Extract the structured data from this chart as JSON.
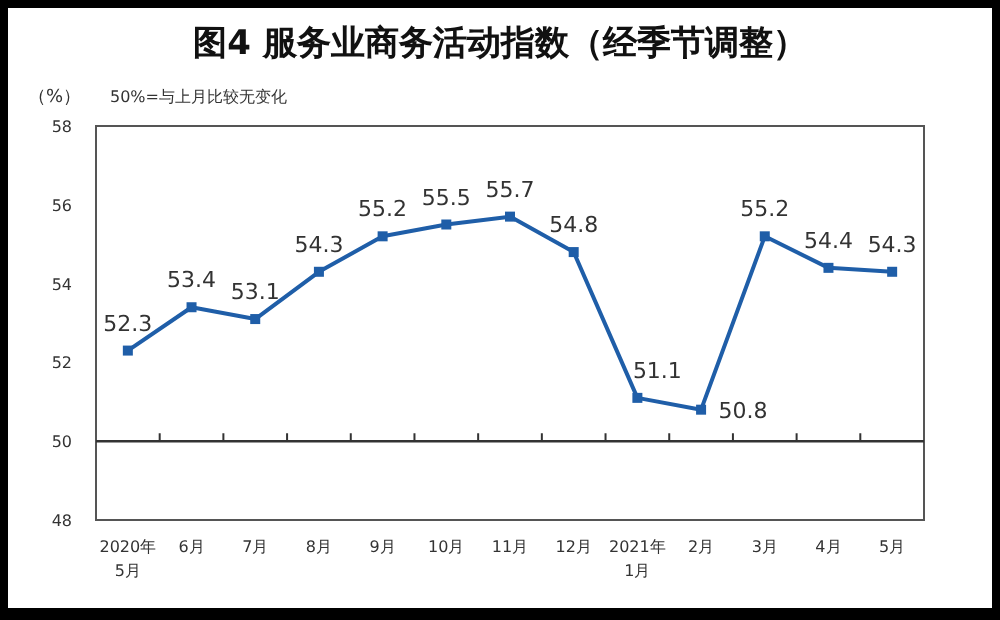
{
  "chart_data": {
    "type": "line",
    "title": "图4  服务业商务活动指数（经季节调整）",
    "ylabel": "（%）",
    "annotations": [
      "50%=与上月比较无变化"
    ],
    "categories": [
      "2020年 5月",
      "6月",
      "7月",
      "8月",
      "9月",
      "10月",
      "11月",
      "12月",
      "2021年 1月",
      "2月",
      "3月",
      "4月",
      "5月"
    ],
    "series": [
      {
        "color": "#1f5ea8",
        "values": [
          52.3,
          53.4,
          53.1,
          54.3,
          55.2,
          55.5,
          55.7,
          54.8,
          51.1,
          50.8,
          55.2,
          54.4,
          54.3
        ]
      }
    ],
    "ylim": [
      48,
      58
    ],
    "yticks": [
      48,
      50,
      52,
      54,
      56,
      58
    ],
    "ref_lines": [
      {
        "axis": "y",
        "value": 50,
        "color": "#333333"
      }
    ],
    "data_labels": true,
    "marker": "square"
  }
}
